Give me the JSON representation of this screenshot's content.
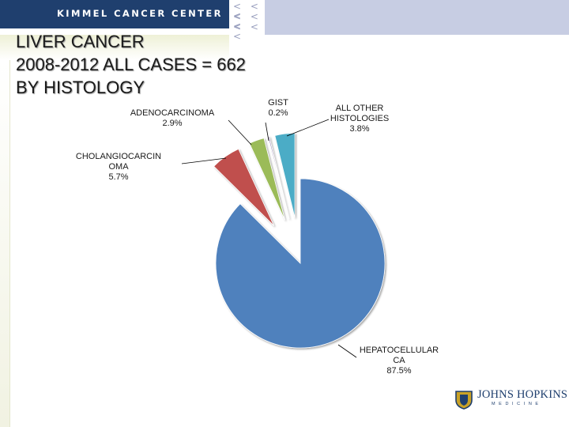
{
  "header": {
    "brand": "KIMMEL CANCER CENTER",
    "chevrons": [
      "< < <",
      "< < <",
      "< < <"
    ]
  },
  "slide_title": {
    "line1": "LIVER CANCER",
    "line2": "2008-2012 ALL CASES  = 662",
    "line3": "BY HISTOLOGY"
  },
  "chart_data": {
    "type": "pie",
    "title": "",
    "slices": [
      {
        "label": "HEPATOCELLULAR CA",
        "label_lines": [
          "HEPATOCELLULAR",
          "CA"
        ],
        "value": 87.5,
        "value_label": "87.5%",
        "color": "#4f81bd"
      },
      {
        "label": "CHOLANGIOCARCINOMA",
        "label_lines": [
          "CHOLANGIOCARCIN",
          "OMA"
        ],
        "value": 5.7,
        "value_label": "5.7%",
        "color": "#c0504d"
      },
      {
        "label": "ADENOCARCINOMA",
        "label_lines": [
          "ADENOCARCINOMA"
        ],
        "value": 2.9,
        "value_label": "2.9%",
        "color": "#9bbb59"
      },
      {
        "label": "GIST",
        "label_lines": [
          "GIST"
        ],
        "value": 0.2,
        "value_label": "0.2%",
        "color": "#8064a2"
      },
      {
        "label": "ALL OTHER HISTOLOGIES",
        "label_lines": [
          "ALL OTHER",
          "HISTOLOGIES"
        ],
        "value": 3.8,
        "value_label": "3.8%",
        "color": "#4bacc6"
      }
    ],
    "legend": "none"
  },
  "logo": {
    "name": "JOHNS HOPKINS",
    "sub": "MEDICINE",
    "colors": {
      "navy": "#1f3f6e",
      "gold": "#c9a227"
    }
  },
  "theme": {
    "header_navy": "#1f3f6e",
    "header_lavender": "#c7cde3"
  }
}
